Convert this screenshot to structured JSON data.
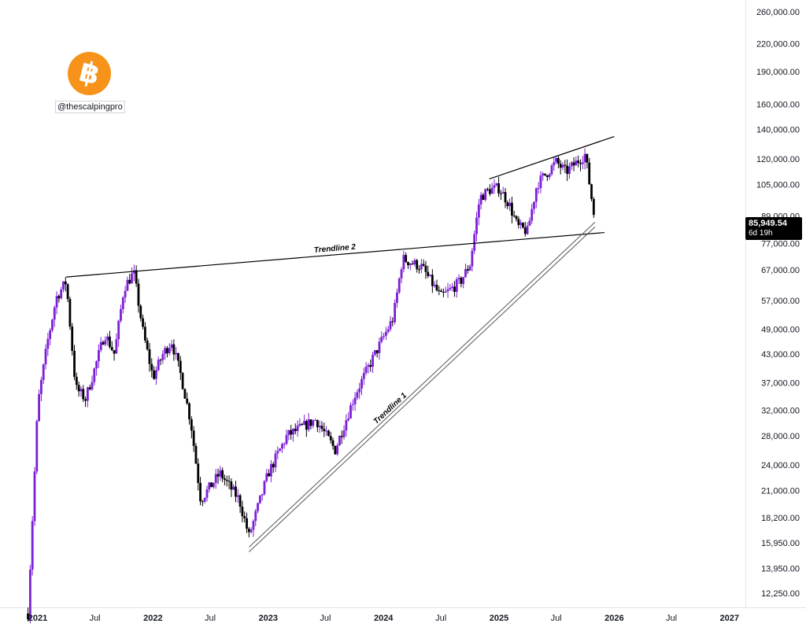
{
  "watermark": {
    "handle": "@thescalpingpro",
    "logo": "bitcoin-logo"
  },
  "price_tag": {
    "value": "85,949.54",
    "countdown": "6d 19h"
  },
  "colors": {
    "up": "#7c1fd6",
    "down": "#000000",
    "trendline": "#000000",
    "axis_text": "#131722",
    "tag_bg": "#000000",
    "logo": "#f7931a"
  },
  "chart_data": {
    "type": "candlestick",
    "timeframe": "weekly",
    "scale": "log",
    "grid": false,
    "x_axis": {
      "ticks": [
        "2021",
        "Jul",
        "2022",
        "Jul",
        "2023",
        "Jul",
        "2024",
        "Jul",
        "2025",
        "Jul",
        "2026",
        "Jul",
        "2027"
      ]
    },
    "y_axis": {
      "position": "right",
      "ticks": [
        "260,000.00",
        "220,000.00",
        "190,000.00",
        "160,000.00",
        "140,000.00",
        "120,000.00",
        "105,000.00",
        "89,000.00",
        "77,000.00",
        "67,000.00",
        "57,000.00",
        "49,000.00",
        "43,000.00",
        "37,000.00",
        "32,000.00",
        "28,000.00",
        "24,000.00",
        "21,000.00",
        "18,200.00",
        "15,950.00",
        "13,950.00",
        "12,250.00"
      ]
    },
    "approx_close_path": [
      {
        "date": "2020-12",
        "close": 11000
      },
      {
        "date": "2021-01",
        "close": 33000
      },
      {
        "date": "2021-02",
        "close": 46000
      },
      {
        "date": "2021-03",
        "close": 58000
      },
      {
        "date": "2021-04",
        "close": 63000
      },
      {
        "date": "2021-05",
        "close": 36000
      },
      {
        "date": "2021-06",
        "close": 34000
      },
      {
        "date": "2021-07",
        "close": 40000
      },
      {
        "date": "2021-08",
        "close": 48000
      },
      {
        "date": "2021-09",
        "close": 43000
      },
      {
        "date": "2021-10",
        "close": 61000
      },
      {
        "date": "2021-11",
        "close": 66000
      },
      {
        "date": "2021-12",
        "close": 48000
      },
      {
        "date": "2022-01",
        "close": 38000
      },
      {
        "date": "2022-02",
        "close": 43000
      },
      {
        "date": "2022-03",
        "close": 46000
      },
      {
        "date": "2022-04",
        "close": 38000
      },
      {
        "date": "2022-05",
        "close": 30000
      },
      {
        "date": "2022-06",
        "close": 20000
      },
      {
        "date": "2022-08",
        "close": 23000
      },
      {
        "date": "2022-10",
        "close": 20000
      },
      {
        "date": "2022-11",
        "close": 16500
      },
      {
        "date": "2023-01",
        "close": 23000
      },
      {
        "date": "2023-03",
        "close": 28000
      },
      {
        "date": "2023-06",
        "close": 30500
      },
      {
        "date": "2023-08",
        "close": 26000
      },
      {
        "date": "2023-10",
        "close": 34500
      },
      {
        "date": "2023-12",
        "close": 42500
      },
      {
        "date": "2024-02",
        "close": 52000
      },
      {
        "date": "2024-03",
        "close": 71000
      },
      {
        "date": "2024-05",
        "close": 68000
      },
      {
        "date": "2024-07",
        "close": 58000
      },
      {
        "date": "2024-09",
        "close": 63000
      },
      {
        "date": "2024-10",
        "close": 69000
      },
      {
        "date": "2024-11",
        "close": 98000
      },
      {
        "date": "2024-12",
        "close": 102000
      },
      {
        "date": "2025-01",
        "close": 103000
      },
      {
        "date": "2025-02",
        "close": 95000
      },
      {
        "date": "2025-03",
        "close": 84000
      },
      {
        "date": "2025-04",
        "close": 82000
      },
      {
        "date": "2025-05",
        "close": 105000
      },
      {
        "date": "2025-07",
        "close": 118000
      },
      {
        "date": "2025-08",
        "close": 112000
      },
      {
        "date": "2025-10",
        "close": 123000
      },
      {
        "date": "2025-11",
        "close": 86000
      }
    ],
    "annotations": [
      {
        "label": "Trendline 2",
        "from": {
          "date": "2021-04",
          "price": 64500
        },
        "to": {
          "date": "2025-12",
          "price": 81500
        }
      },
      {
        "label": "Trendline 1",
        "from": {
          "date": "2022-11",
          "price": 15400
        },
        "to": {
          "date": "2025-11",
          "price": 85000
        },
        "style": "double"
      },
      {
        "label": "",
        "from": {
          "date": "2024-12",
          "price": 108000
        },
        "to": {
          "date": "2026-01",
          "price": 135000
        }
      }
    ],
    "last_price": 85949.54
  }
}
